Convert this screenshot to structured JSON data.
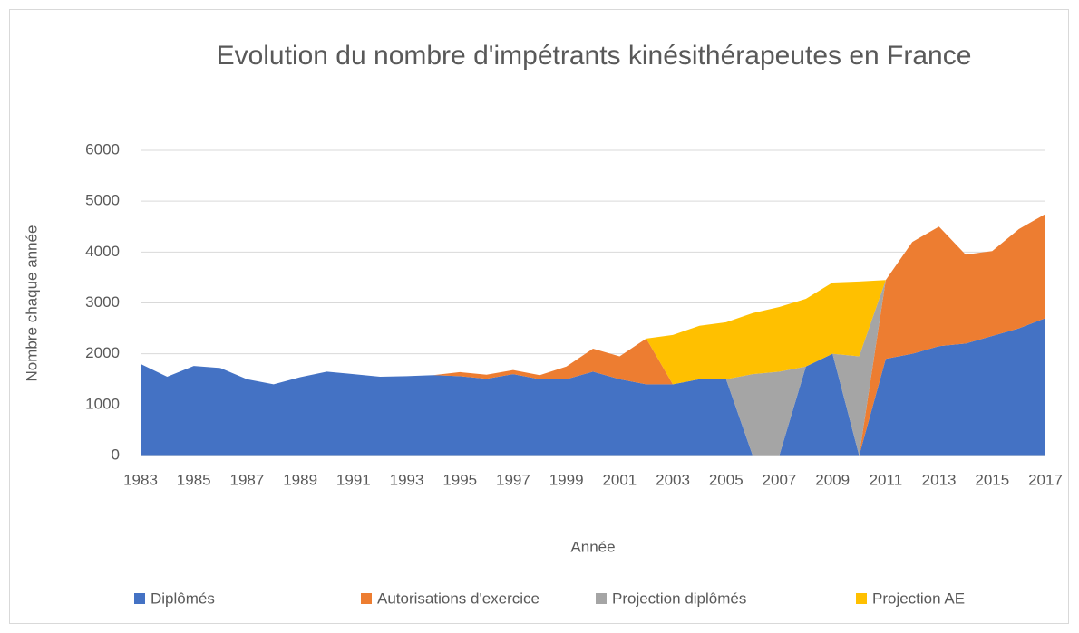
{
  "chart_data": {
    "type": "stacked_area",
    "title": "Evolution du nombre d'impétrants kinésithérapeutes en France",
    "x_label": "Année",
    "y_label": "Nombre chaque année",
    "categories": [
      "1983",
      null,
      "1985",
      null,
      "1987",
      null,
      "1989",
      null,
      "1991",
      null,
      "1993",
      null,
      "1995",
      null,
      "1997",
      null,
      "1999",
      null,
      "2001",
      null,
      "2003",
      null,
      "2005",
      null,
      "2007",
      null,
      "2009",
      null,
      "2011",
      null,
      "2013",
      null,
      "2015",
      null,
      "2017"
    ],
    "series": [
      {
        "name": "Diplômés",
        "color": "#4472c4",
        "values": [
          1800,
          1550,
          1760,
          1720,
          1500,
          1400,
          1540,
          1650,
          1600,
          1550,
          1560,
          1580,
          1560,
          1510,
          1600,
          1500,
          1500,
          1650,
          1500,
          1400,
          1400,
          1500,
          1500,
          0,
          0,
          1750,
          2000,
          0,
          1900,
          2000,
          2150,
          2200,
          2350,
          2500,
          2700
        ]
      },
      {
        "name": "Autorisations d'exercice",
        "color": "#ed7d31",
        "values": [
          0,
          0,
          0,
          0,
          0,
          0,
          0,
          0,
          0,
          0,
          0,
          0,
          80,
          80,
          80,
          80,
          250,
          450,
          450,
          900,
          0,
          0,
          0,
          0,
          0,
          0,
          0,
          0,
          1550,
          2200,
          2350,
          1750,
          1670,
          1950,
          2050
        ]
      },
      {
        "name": "Projection diplômés",
        "color": "#a5a5a5",
        "values": [
          0,
          0,
          0,
          0,
          0,
          0,
          0,
          0,
          0,
          0,
          0,
          0,
          0,
          0,
          0,
          0,
          0,
          0,
          0,
          0,
          0,
          0,
          0,
          1600,
          1650,
          0,
          0,
          1950,
          0,
          0,
          0,
          0,
          0,
          0,
          0
        ]
      },
      {
        "name": "Projection AE",
        "color": "#ffc000",
        "values": [
          0,
          0,
          0,
          0,
          0,
          0,
          0,
          0,
          0,
          0,
          0,
          0,
          0,
          0,
          0,
          0,
          0,
          0,
          0,
          0,
          970,
          1050,
          1120,
          1200,
          1270,
          1330,
          1400,
          1470,
          0,
          0,
          0,
          0,
          0,
          0,
          0
        ]
      }
    ],
    "ylim": [
      0,
      6000
    ],
    "yticks": [
      0,
      1000,
      2000,
      3000,
      4000,
      5000,
      6000
    ],
    "grid": true,
    "legend": "bottom"
  }
}
